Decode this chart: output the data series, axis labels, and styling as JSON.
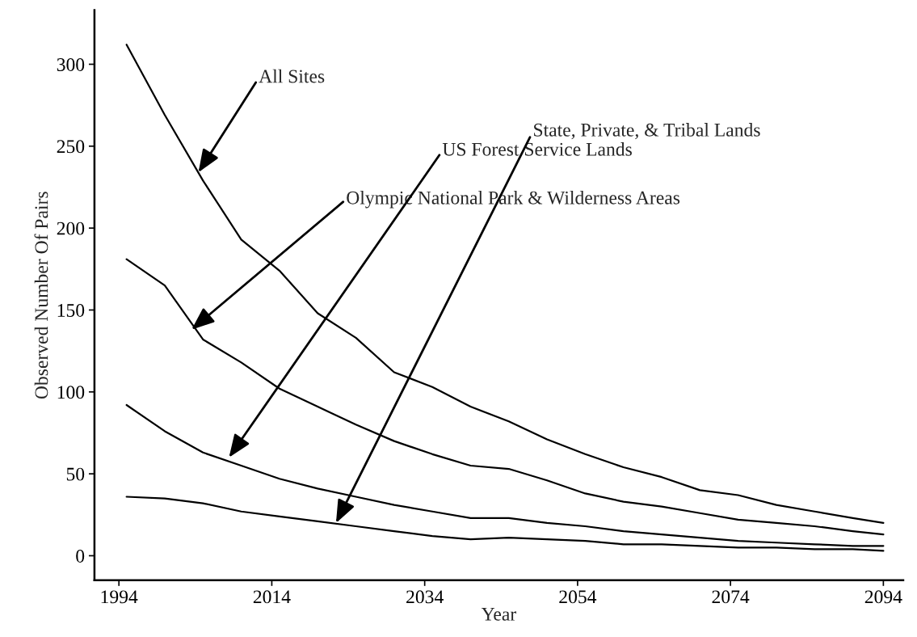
{
  "chart_data": {
    "type": "line",
    "xlabel": "Year",
    "ylabel": "Observed Number Of Pairs",
    "x": [
      1995,
      2000,
      2005,
      2010,
      2015,
      2020,
      2025,
      2030,
      2035,
      2040,
      2045,
      2050,
      2055,
      2060,
      2065,
      2070,
      2075,
      2080,
      2085,
      2090,
      2094
    ],
    "series": [
      {
        "color": "#000000",
        "values": [
          312,
          269,
          229,
          193,
          174,
          148,
          133,
          112,
          103,
          91,
          82,
          71,
          62,
          54,
          48,
          40,
          37,
          31,
          27,
          23,
          20
        ]
      },
      {
        "color": "#000000",
        "values": [
          181,
          165,
          132,
          118,
          102,
          91,
          80,
          70,
          62,
          55,
          53,
          46,
          38,
          33,
          30,
          26,
          22,
          20,
          18,
          15,
          13
        ]
      },
      {
        "color": "#000000",
        "values": [
          92,
          76,
          63,
          55,
          47,
          41,
          36,
          31,
          27,
          23,
          23,
          20,
          18,
          15,
          13,
          11,
          9,
          8,
          7,
          6,
          6
        ]
      },
      {
        "color": "#000000",
        "values": [
          36,
          35,
          32,
          27,
          24,
          21,
          18,
          15,
          12,
          10,
          11,
          10,
          9,
          7,
          7,
          6,
          5,
          5,
          4,
          4,
          3
        ]
      }
    ],
    "annotations": [
      {
        "text": "All Sites",
        "x": 2004.4,
        "y": 234
      },
      {
        "text": "Olympic National Park & Wilderness Areas",
        "x": 2003.5,
        "y": 138
      },
      {
        "text": "US Forest Service Lands",
        "x": 2008.4,
        "y": 60
      },
      {
        "text": "State, Private, & Tribal Lands",
        "x": 2022.4,
        "y": 20
      }
    ],
    "xlim": [
      1990.8,
      2096.6
    ],
    "ylim": [
      -15,
      333
    ],
    "xticks": [
      1994,
      2014,
      2034,
      2054,
      2074,
      2094
    ],
    "yticks": [
      0,
      50,
      100,
      150,
      200,
      250,
      300
    ],
    "grid": false,
    "legend": false,
    "marker": "none",
    "line_style": "solid"
  }
}
